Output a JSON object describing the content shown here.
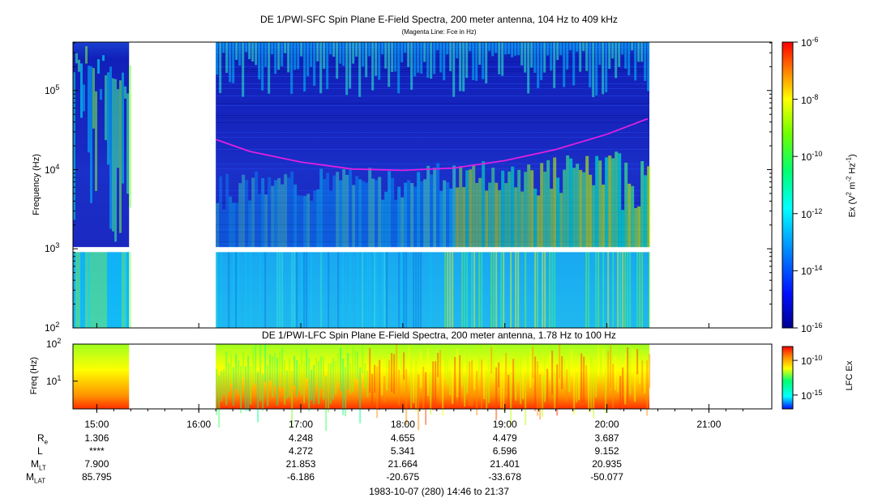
{
  "colors": {
    "spectrogram_bg": "#1a1aa8",
    "magenta_line": "#e020e0",
    "colorbar_stops": [
      "#00008b",
      "#0000ff",
      "#00a0ff",
      "#00ffff",
      "#00ff80",
      "#80ff00",
      "#ffff00",
      "#ff8000",
      "#ff0000"
    ]
  },
  "chart_data": [
    {
      "type": "heatmap",
      "title": "DE 1/PWI-SFC  Spin Plane E-Field Spectra, 200 meter antenna, 104 Hz to 409 kHz",
      "subtitle": "(Magenta Line: Fce in Hz)",
      "ylabel": "Frequency (Hz)",
      "y_scale": "log",
      "yticks": [
        {
          "base": "10",
          "exp": "2"
        },
        {
          "base": "10",
          "exp": "3"
        },
        {
          "base": "10",
          "exp": "4"
        },
        {
          "base": "10",
          "exp": "5"
        }
      ],
      "x_time_range": [
        "14:46",
        "21:37"
      ],
      "data_gaps": [
        [
          "15:19",
          "16:10"
        ],
        [
          "20:25",
          "21:37"
        ]
      ],
      "fce_line": {
        "name": "Fce",
        "x_hours": [
          16.17,
          16.5,
          17.0,
          17.5,
          18.0,
          18.5,
          19.0,
          19.5,
          20.0,
          20.4
        ],
        "y_hz": [
          24000,
          17000,
          12500,
          10200,
          9800,
          10500,
          13000,
          18000,
          28000,
          44000
        ]
      },
      "colorbar": {
        "label_main": "Ex (V",
        "label_mid": " m",
        "label_mid2": " Hz",
        "label_end": ")",
        "sup1": "2",
        "sup2": "-2",
        "sup3": "-1",
        "range_log": [
          -16,
          -6
        ],
        "ticks": [
          {
            "base": "10",
            "exp": "-6"
          },
          {
            "base": "10",
            "exp": "-8"
          },
          {
            "base": "10",
            "exp": "-10"
          },
          {
            "base": "10",
            "exp": "-12"
          },
          {
            "base": "10",
            "exp": "-14"
          },
          {
            "base": "10",
            "exp": "-16"
          }
        ]
      }
    },
    {
      "type": "heatmap",
      "title": "DE 1/PWI-LFC  Spin Plane E-Field Spectra, 200 meter antenna, 1.78 Hz to 100 Hz",
      "ylabel": "Freq (Hz)",
      "y_scale": "log",
      "yticks": [
        {
          "base": "10",
          "exp": "1"
        },
        {
          "base": "10",
          "exp": "2"
        }
      ],
      "xticks": [
        "15:00",
        "16:00",
        "17:00",
        "18:00",
        "19:00",
        "20:00",
        "21:00"
      ],
      "colorbar": {
        "label": "LFC Ex",
        "ticks": [
          {
            "base": "10",
            "exp": "-10"
          },
          {
            "base": "10",
            "exp": "-15"
          }
        ]
      }
    }
  ],
  "ephemeris": {
    "rows": [
      {
        "label": "R",
        "sub": "e",
        "values": [
          "1.306",
          "4.248",
          "4.655",
          "4.479",
          "3.687"
        ]
      },
      {
        "label": "L",
        "sub": "",
        "values": [
          "****",
          "4.272",
          "5.341",
          "6.596",
          "9.152"
        ]
      },
      {
        "label": "M",
        "sub": "LT",
        "values": [
          "7.900",
          "21.853",
          "21.664",
          "21.401",
          "20.935"
        ]
      },
      {
        "label": "M",
        "sub": "LAT",
        "values": [
          "85.795",
          "-6.186",
          "-20.675",
          "-33.678",
          "-50.077"
        ]
      }
    ],
    "times": [
      "15:00",
      "17:00",
      "18:00",
      "19:00",
      "20:00"
    ]
  },
  "footer": {
    "date_range": "1983-10-07 (280) 14:46 to 21:37"
  }
}
